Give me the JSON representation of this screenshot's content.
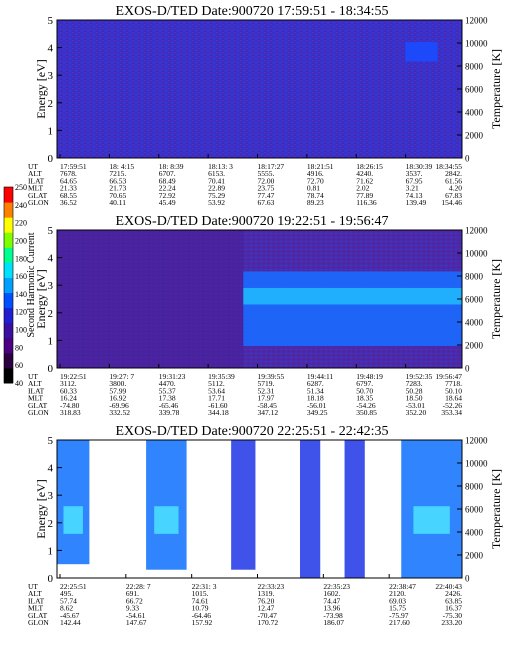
{
  "chart_data": [
    {
      "type": "heatmap",
      "title": "EXOS-D/TED   Date:900720  17:59:51 - 18:34:55",
      "ylabel": "Energy [eV]",
      "y2label": "Temperature [K]",
      "ylim": [
        0,
        5
      ],
      "y2lim": [
        0,
        12000
      ],
      "yticks": [
        "0",
        "1",
        "2",
        "3",
        "4",
        "5"
      ],
      "y2ticks": [
        "0",
        "2000",
        "4000",
        "6000",
        "8000",
        "10000",
        "12000"
      ],
      "background": "#3333cc",
      "features": [
        {
          "x": [
            0.86,
            0.94
          ],
          "y": [
            3.5,
            4.2
          ],
          "level": "bright-blue"
        }
      ],
      "orbit_labels": [
        "UT",
        "ALT",
        "ILAT",
        "MLT",
        "GLAT",
        "GLON"
      ],
      "orbit_columns": [
        [
          "17:59:51",
          "7678.",
          "64.65",
          "21.33",
          "68.55",
          "36.52"
        ],
        [
          "18: 4:15",
          "7215.",
          "66.53",
          "21.73",
          "70.65",
          "40.11"
        ],
        [
          "18: 8:39",
          "6707.",
          "68.49",
          "22.24",
          "72.92",
          "45.49"
        ],
        [
          "18:13: 3",
          "6153.",
          "70.41",
          "22.89",
          "75.29",
          "53.92"
        ],
        [
          "18:17:27",
          "5555.",
          "72.00",
          "23.75",
          "77.47",
          "67.63"
        ],
        [
          "18:21:51",
          "4916.",
          "72.70",
          "0.81",
          "78.74",
          "89.23"
        ],
        [
          "18:26:15",
          "4240.",
          "71.62",
          "2.02",
          "77.89",
          "116.36"
        ],
        [
          "18:30:39",
          "3537.",
          "67.95",
          "3.21",
          "74.13",
          "139.49"
        ],
        [
          "18:34:55",
          "2842.",
          "61.56",
          "4.20",
          "67.83",
          "154.46"
        ]
      ]
    },
    {
      "type": "heatmap",
      "title": "EXOS-D/TED   Date:900720  19:22:51 - 19:56:47",
      "ylabel": "Energy [eV]",
      "y2label": "Temperature [K]",
      "ylim": [
        0,
        5
      ],
      "y2lim": [
        0,
        12000
      ],
      "yticks": [
        "0",
        "1",
        "2",
        "3",
        "4",
        "5"
      ],
      "y2ticks": [
        "0",
        "2000",
        "4000",
        "6000",
        "8000",
        "10000",
        "12000"
      ],
      "features": [
        {
          "x": [
            0.0,
            0.46
          ],
          "y": [
            0,
            5
          ],
          "level": "dark-purple"
        },
        {
          "x": [
            0.46,
            1.0
          ],
          "y": [
            0.8,
            3.5
          ],
          "level": "cyan-blue band"
        }
      ],
      "orbit_labels": [
        "UT",
        "ALT",
        "ILAT",
        "MLT",
        "GLAT",
        "GLON"
      ],
      "orbit_columns": [
        [
          "19:22:51",
          "3112.",
          "60.33",
          "16.24",
          "-74.80",
          "318.83"
        ],
        [
          "19:27: 7",
          "3800.",
          "57.99",
          "16.92",
          "-69.96",
          "332.52"
        ],
        [
          "19:31:23",
          "4470.",
          "55.37",
          "17.38",
          "-65.46",
          "339.78"
        ],
        [
          "19:35:39",
          "5112.",
          "53.64",
          "17.71",
          "-61.60",
          "344.18"
        ],
        [
          "19:39:55",
          "5719.",
          "52.31",
          "17.97",
          "-58.45",
          "347.12"
        ],
        [
          "19:44:11",
          "6287.",
          "51.34",
          "18.18",
          "-56.01",
          "349.25"
        ],
        [
          "19:48:19",
          "6797.",
          "50.70",
          "18.35",
          "-54.26",
          "350.85"
        ],
        [
          "19:52:35",
          "7283.",
          "50.28",
          "18.50",
          "-53.01",
          "352.20"
        ],
        [
          "19:56:47",
          "7718.",
          "50.10",
          "18.64",
          "-52.26",
          "353.34"
        ]
      ]
    },
    {
      "type": "heatmap",
      "title": "EXOS-D/TED   Date:900720  22:25:51 - 22:42:35",
      "ylabel": "Energy [eV]",
      "y2label": "Temperature [K]",
      "ylim": [
        0,
        5
      ],
      "y2lim": [
        0,
        12000
      ],
      "yticks": [
        "0",
        "1",
        "2",
        "3",
        "4",
        "5"
      ],
      "y2ticks": [
        "0",
        "2000",
        "4000",
        "6000",
        "8000",
        "10000",
        "12000"
      ],
      "background": "#ffffff",
      "features": [
        {
          "x": [
            0.0,
            0.08
          ],
          "y": [
            0.5,
            5
          ],
          "level": "blue-cyan"
        },
        {
          "x": [
            0.22,
            0.32
          ],
          "y": [
            0.3,
            5
          ],
          "level": "blue-cyan"
        },
        {
          "x": [
            0.43,
            0.49
          ],
          "y": [
            0.3,
            5
          ],
          "level": "blue"
        },
        {
          "x": [
            0.6,
            0.65
          ],
          "y": [
            0,
            5
          ],
          "level": "blue"
        },
        {
          "x": [
            0.71,
            0.76
          ],
          "y": [
            0,
            5
          ],
          "level": "blue"
        },
        {
          "x": [
            0.85,
            1.0
          ],
          "y": [
            0,
            5
          ],
          "level": "blue-cyan"
        }
      ],
      "orbit_labels": [
        "UT",
        "ALT",
        "ILAT",
        "MLT",
        "GLAT",
        "GLON"
      ],
      "orbit_columns": [
        [
          "22:25:51",
          "495.",
          "57.74",
          "8.62",
          "-45.67",
          "142.44"
        ],
        [
          "22:28: 7",
          "691.",
          "66.72",
          "9.33",
          "-54.61",
          "147.67"
        ],
        [
          "22:31: 3",
          "1015.",
          "74.61",
          "10.79",
          "-64.46",
          "157.92"
        ],
        [
          "22:33:23",
          "1319.",
          "76.20",
          "12.47",
          "-70.47",
          "170.72"
        ],
        [
          "22:35:23",
          "1602.",
          "74.47",
          "13.96",
          "-73.98",
          "186.07"
        ],
        [
          "22:38:47",
          "2120.",
          "69.03",
          "15.75",
          "-75.97",
          "217.60"
        ],
        [
          "22:40:43",
          "2426.",
          "63.85",
          "16.37",
          "-75.30",
          "233.20"
        ]
      ]
    }
  ],
  "colorbar": {
    "label": "Second Harmonic Current",
    "ticks": [
      "40",
      "60",
      "80",
      "100",
      "120",
      "140",
      "160",
      "180",
      "200",
      "220",
      "240",
      "250"
    ],
    "colors": [
      "#000000",
      "#2b0040",
      "#4b0082",
      "#3a10a0",
      "#2020d0",
      "#0050ff",
      "#00a0ff",
      "#00e0ff",
      "#00ff90",
      "#80ff00",
      "#ffff00",
      "#ff8000",
      "#ff0000"
    ]
  }
}
